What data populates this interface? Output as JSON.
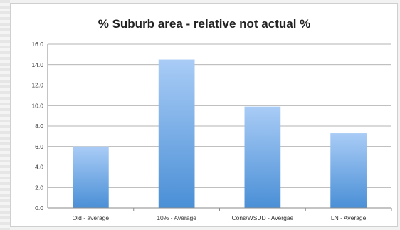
{
  "chart_data": {
    "type": "bar",
    "title": "% Suburb area - relative not actual %",
    "categories": [
      "Old - average",
      "10% - Average",
      "Cons/WSUD - Avergae",
      "LN - Average"
    ],
    "values": [
      6.0,
      14.5,
      9.9,
      7.3
    ],
    "ylim": [
      0,
      16
    ],
    "yticks": [
      "0.0",
      "2.0",
      "4.0",
      "6.0",
      "8.0",
      "10.0",
      "12.0",
      "14.0",
      "16.0"
    ],
    "grid": true,
    "legend": "none",
    "bar_color_top": "#a9ccf6",
    "bar_color_bottom": "#4a8fd6",
    "gridline_color": "#9a9a9a"
  }
}
